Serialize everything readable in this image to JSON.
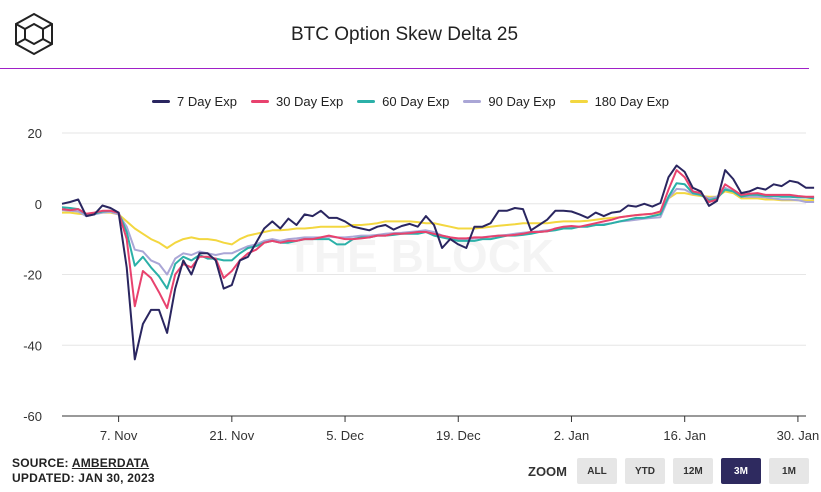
{
  "header": {
    "title": "BTC Option Skew Delta 25"
  },
  "watermark": "THE BLOCK",
  "footer": {
    "source_prefix": "SOURCE: ",
    "source_name": "AMBERDATA",
    "updated": "UPDATED: JAN 30, 2023"
  },
  "zoom": {
    "label": "ZOOM",
    "buttons": [
      "ALL",
      "YTD",
      "12M",
      "3M",
      "1M"
    ],
    "active": "3M"
  },
  "chart_data": {
    "type": "line",
    "title": "BTC Option Skew Delta 25",
    "x_start": "2022-10-31",
    "x_end": "2023-01-31",
    "xlim": [
      0,
      92
    ],
    "ylim": [
      -60,
      20
    ],
    "y_ticks": [
      20,
      0,
      -20,
      -40,
      -60
    ],
    "x_ticks": [
      {
        "label": "7. Nov",
        "day": 7
      },
      {
        "label": "21. Nov",
        "day": 21
      },
      {
        "label": "5. Dec",
        "day": 35
      },
      {
        "label": "19. Dec",
        "day": 49
      },
      {
        "label": "2. Jan",
        "day": 63
      },
      {
        "label": "16. Jan",
        "day": 77
      },
      {
        "label": "30. Jan",
        "day": 91
      }
    ],
    "grid": true,
    "legend_position": "top-center",
    "series": [
      {
        "name": "7 Day Exp",
        "color": "#2a2660",
        "values": [
          0,
          0.5,
          1.2,
          -3.5,
          -3,
          -0.5,
          -1.2,
          -2.5,
          -18,
          -44,
          -34,
          -30,
          -30,
          -36.5,
          -24,
          -16,
          -20,
          -14,
          -14,
          -16,
          -24,
          -23,
          -16,
          -15,
          -11,
          -7,
          -5,
          -7,
          -4.2,
          -6,
          -3,
          -3.5,
          -2,
          -4,
          -4,
          -5,
          -6.5,
          -7,
          -7.5,
          -6.5,
          -6,
          -7.3,
          -6.3,
          -5.7,
          -6.5,
          -3.5,
          -6,
          -12.5,
          -10,
          -11.5,
          -12.5,
          -6.5,
          -6.5,
          -5.5,
          -2,
          -2,
          -1.2,
          -1.5,
          -7.5,
          -6,
          -4.5,
          -2,
          -2,
          -2.2,
          -3,
          -4,
          -2.5,
          -3.5,
          -2.5,
          -2.2,
          -0.5,
          -0.8,
          0,
          -0.8,
          0.2,
          7.5,
          10.8,
          9,
          4.5,
          3.5,
          -0.6,
          0.8,
          9.5,
          7,
          3,
          3.5,
          4.5,
          4,
          5.5,
          5,
          6.5,
          6,
          4.5,
          4.5
        ],
        "ys_note": "values indexed by day 0..93 (Oct 31 start)"
      },
      {
        "name": "30 Day Exp",
        "color": "#e8426e",
        "values": [
          -1.5,
          -1.8,
          -1.5,
          -2.8,
          -2.5,
          -2,
          -2,
          -2.5,
          -10,
          -29,
          -19,
          -21,
          -25,
          -29.5,
          -20,
          -17,
          -18,
          -15,
          -15,
          -15.5,
          -21,
          -19,
          -16,
          -14,
          -13,
          -11,
          -10.5,
          -11,
          -10.5,
          -10.5,
          -10,
          -10,
          -9.5,
          -9,
          -9.5,
          -10,
          -10,
          -9.8,
          -9.5,
          -9,
          -9,
          -8.5,
          -8.5,
          -8.3,
          -8,
          -8,
          -8.5,
          -9,
          -9.5,
          -9.8,
          -9.8,
          -9.5,
          -9.5,
          -9.3,
          -9,
          -9,
          -8.8,
          -8.5,
          -8,
          -8,
          -7.8,
          -7,
          -6.5,
          -6.3,
          -6.5,
          -6,
          -5.5,
          -5,
          -4.5,
          -3.8,
          -3.5,
          -3.2,
          -3,
          -2.8,
          -2.2,
          4,
          9.5,
          7.5,
          3.5,
          3,
          0.5,
          1.2,
          5.5,
          4,
          2.5,
          2.8,
          3,
          2.5,
          2.5,
          2.5,
          2.5,
          2.2,
          2,
          2
        ],
        "ys_note": ""
      },
      {
        "name": "60 Day Exp",
        "color": "#2bb0a8",
        "values": [
          -1,
          -1.2,
          -1.5,
          -3,
          -2.8,
          -2.2,
          -2,
          -2.5,
          -8,
          -17.5,
          -15,
          -18,
          -20.5,
          -24,
          -17,
          -15,
          -16,
          -14.5,
          -15.5,
          -15.5,
          -16,
          -16,
          -14,
          -12.5,
          -12,
          -11,
          -10.5,
          -11,
          -11,
          -10.5,
          -10,
          -10,
          -10,
          -10,
          -11.5,
          -11.5,
          -10,
          -9.5,
          -9.5,
          -9,
          -9,
          -8.8,
          -8.5,
          -8.5,
          -8.5,
          -8,
          -9,
          -9.5,
          -10,
          -10.5,
          -10.5,
          -10.5,
          -10,
          -10,
          -9.5,
          -9,
          -9,
          -8.8,
          -8.5,
          -8,
          -7.8,
          -7.5,
          -7,
          -7,
          -6.5,
          -6.5,
          -6,
          -6,
          -5.5,
          -5,
          -4.5,
          -4,
          -4,
          -3.5,
          -3,
          2,
          5.8,
          5.5,
          3,
          2.5,
          1,
          1.5,
          4,
          3.5,
          2,
          2.5,
          2.5,
          2.2,
          2.2,
          2,
          2,
          1.8,
          1.8,
          1.5
        ],
        "ys_note": ""
      },
      {
        "name": "90 Day Exp",
        "color": "#aaa6d6",
        "values": [
          -1.8,
          -2,
          -2.2,
          -3.5,
          -3,
          -2.5,
          -2.3,
          -3,
          -6.5,
          -13,
          -13.5,
          -16,
          -17,
          -20,
          -15.5,
          -14,
          -14.5,
          -13.5,
          -14,
          -14.5,
          -14,
          -14,
          -13,
          -12,
          -11.5,
          -10.5,
          -10,
          -10.5,
          -10,
          -9.8,
          -9.5,
          -9.5,
          -9.5,
          -9.3,
          -9.5,
          -9.5,
          -9.3,
          -9,
          -9,
          -8.8,
          -8.5,
          -8.3,
          -8.2,
          -8,
          -7.8,
          -7.5,
          -8,
          -9,
          -9.5,
          -10,
          -10,
          -9.8,
          -9.5,
          -9.2,
          -9,
          -8.8,
          -8.5,
          -8.2,
          -8,
          -7.8,
          -7.5,
          -7.2,
          -7,
          -6.8,
          -6.5,
          -6.3,
          -6,
          -5.8,
          -5.5,
          -5,
          -4.8,
          -4.5,
          -4.2,
          -4,
          -3.8,
          1.5,
          4.2,
          4,
          2.8,
          2.5,
          1.5,
          2,
          4.5,
          3.5,
          2,
          2,
          2,
          1.8,
          1.5,
          1.2,
          1.2,
          1,
          0.5,
          0.5
        ],
        "ys_note": ""
      },
      {
        "name": "180 Day Exp",
        "color": "#f3d740",
        "values": [
          -2.5,
          -2.5,
          -2.8,
          -3,
          -2.8,
          -2.5,
          -2.5,
          -3,
          -5,
          -7,
          -8.5,
          -10,
          -11,
          -12.5,
          -11,
          -10,
          -9.5,
          -10,
          -10,
          -10.3,
          -11,
          -11.5,
          -10,
          -9,
          -8.5,
          -8,
          -7.5,
          -7.5,
          -7.3,
          -7,
          -7,
          -6.8,
          -6.5,
          -6.5,
          -6.5,
          -6.5,
          -6,
          -6,
          -5.8,
          -5.5,
          -5,
          -5,
          -5,
          -5,
          -5.2,
          -5.5,
          -5.5,
          -6,
          -6.5,
          -7,
          -7,
          -7,
          -6.8,
          -6.5,
          -6.2,
          -6,
          -5.8,
          -5.5,
          -5.5,
          -5.5,
          -5.5,
          -5.2,
          -5,
          -5,
          -5,
          -4.8,
          -4.5,
          -4.2,
          -4,
          -3.8,
          -3.5,
          -3.2,
          -3,
          -2.8,
          -2.5,
          1.5,
          3,
          3,
          2.5,
          2.2,
          2,
          2,
          3.5,
          3,
          1.5,
          1.5,
          1.5,
          1.2,
          1.2,
          1,
          1,
          1,
          1,
          1
        ]
      }
    ]
  }
}
